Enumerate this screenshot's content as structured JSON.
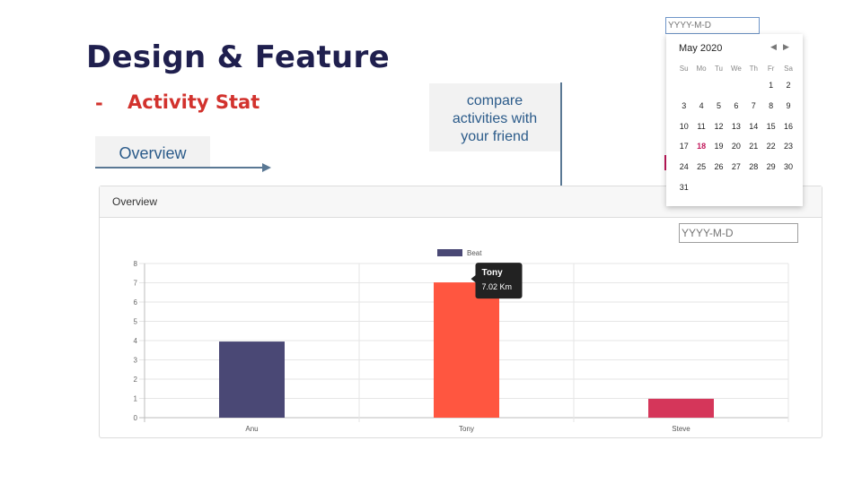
{
  "slide": {
    "title": "Design & Feature",
    "bullet_dash": "-",
    "bullet_text": "Activity Stat",
    "callout_overview": "Overview",
    "callout_compare_lines": [
      "compare",
      "activities with",
      "your friend"
    ]
  },
  "panel": {
    "header": "Overview",
    "date_placeholder": "YYYY-M-D"
  },
  "chart_data": {
    "type": "bar",
    "categories": [
      "Anu",
      "Tony",
      "Steve"
    ],
    "series": [
      {
        "name": "Beat",
        "values": [
          3.95,
          7.02,
          0.98
        ],
        "colors": [
          "#4a4875",
          "#ff5640",
          "#d5365a"
        ]
      }
    ],
    "ylim": [
      0,
      8
    ],
    "yticks": [
      "0",
      "1",
      "2",
      "3",
      "4",
      "5",
      "6",
      "7",
      "8"
    ],
    "legend": {
      "label": "Beat",
      "color": "#4a4875",
      "position": "top-center"
    },
    "tooltip": {
      "title": "Tony",
      "value": "7.02 Km",
      "category_index": 1
    },
    "grid": true
  },
  "calendar": {
    "input_placeholder": "YYYY-M-D",
    "month_label": "May 2020",
    "prev_glyph": "◀",
    "next_glyph": "▶",
    "weekdays": [
      "Su",
      "Mo",
      "Tu",
      "We",
      "Th",
      "Fr",
      "Sa"
    ],
    "weeks": [
      [
        "",
        "",
        "",
        "",
        "",
        "1",
        "2"
      ],
      [
        "3",
        "4",
        "5",
        "6",
        "7",
        "8",
        "9"
      ],
      [
        "10",
        "11",
        "12",
        "13",
        "14",
        "15",
        "16"
      ],
      [
        "17",
        "18",
        "19",
        "20",
        "21",
        "22",
        "23"
      ],
      [
        "24",
        "25",
        "26",
        "27",
        "28",
        "29",
        "30"
      ],
      [
        "31",
        "",
        "",
        "",
        "",
        "",
        ""
      ]
    ],
    "today": "18"
  },
  "colors": {
    "title": "#1f1f4e",
    "accent_red": "#d2322d",
    "callout_text": "#2b5b8a",
    "arrow": "#5a7894"
  }
}
